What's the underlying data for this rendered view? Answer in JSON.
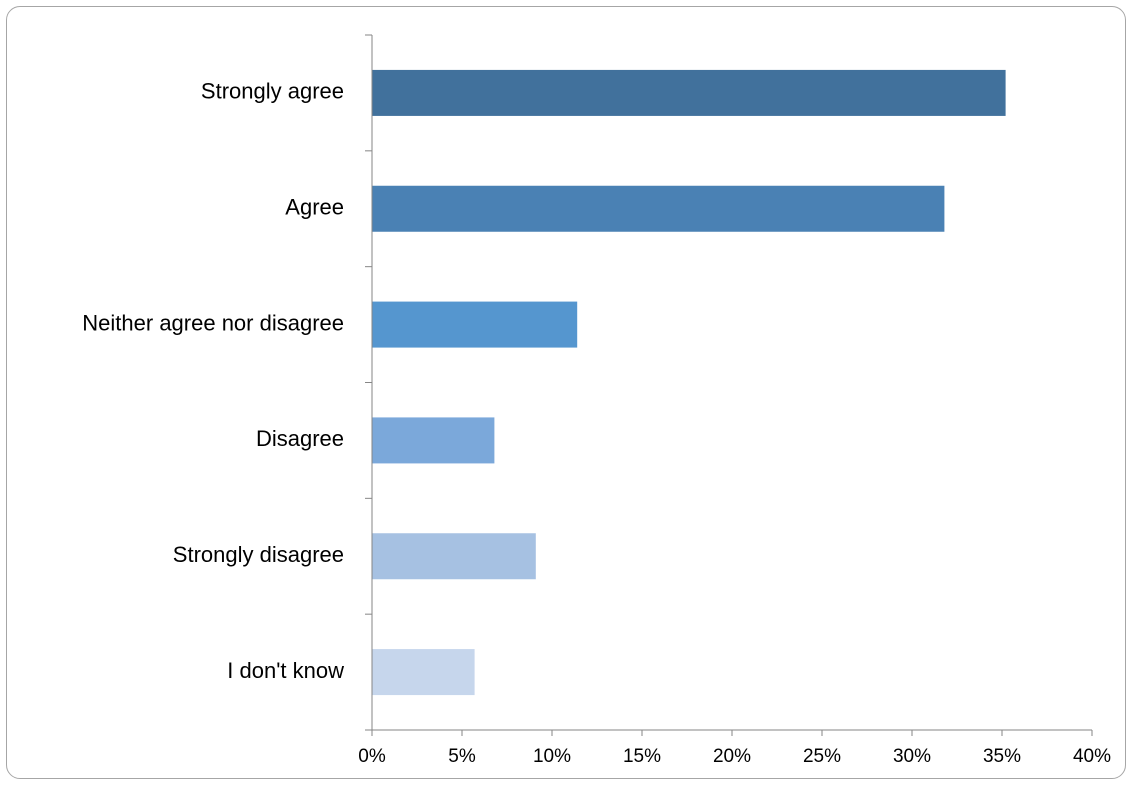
{
  "chart_data": {
    "type": "bar",
    "orientation": "horizontal",
    "categories": [
      "Strongly agree",
      "Agree",
      "Neither agree nor disagree",
      "Disagree",
      "Strongly disagree",
      "I don't know"
    ],
    "values": [
      35.2,
      31.8,
      11.4,
      6.8,
      9.1,
      5.7
    ],
    "bar_colors": [
      "#41719c",
      "#4a81b4",
      "#5596cf",
      "#7ba8da",
      "#a6c1e2",
      "#c6d6ec"
    ],
    "x_ticks": [
      "0%",
      "5%",
      "10%",
      "15%",
      "20%",
      "25%",
      "30%",
      "35%",
      "40%"
    ],
    "xlim": [
      0,
      40
    ],
    "grid": false,
    "legend": "none",
    "title": "",
    "xlabel": "",
    "ylabel": ""
  }
}
